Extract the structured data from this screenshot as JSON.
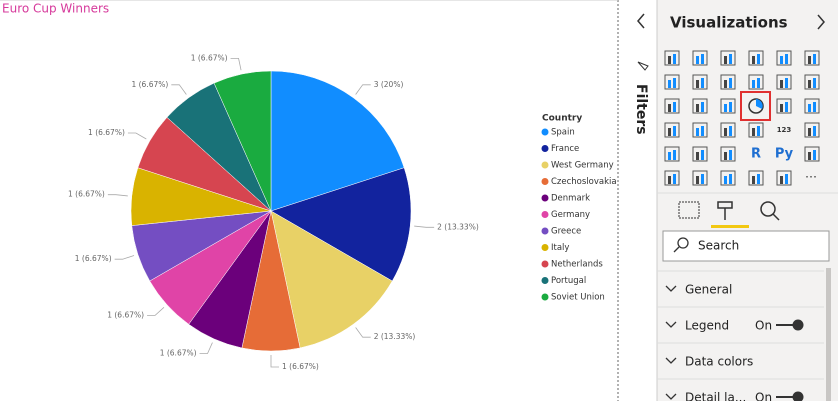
{
  "chart_data": {
    "type": "pie",
    "title": "Euro Cup Winners",
    "legend_title": "Country",
    "legend": "right",
    "categories": [
      "Spain",
      "France",
      "West Germany",
      "Czechoslovakia",
      "Denmark",
      "Germany",
      "Greece",
      "Italy",
      "Netherlands",
      "Portugal",
      "Soviet Union"
    ],
    "values": [
      3,
      2,
      2,
      1,
      1,
      1,
      1,
      1,
      1,
      1,
      1
    ],
    "value_labels": [
      "3 (20%)",
      "2 (13.33%)",
      "2 (13.33%)",
      "1 (6.67%)",
      "1 (6.67%)",
      "1 (6.67%)",
      "1 (6.67%)",
      "1 (6.67%)",
      "1 (6.67%)",
      "1 (6.67%)",
      "1 (6.67%)"
    ],
    "colors": [
      "#118DFF",
      "#12239E",
      "#E8D166",
      "#E66C37",
      "#6B007B",
      "#E044A7",
      "#744EC2",
      "#D9B300",
      "#D64550",
      "#197278",
      "#1AAB40"
    ]
  },
  "ui": {
    "filters": "Filters",
    "pane_title": "Visualizations",
    "icon_texts": [
      "123",
      "R",
      "Py"
    ],
    "search": "Search",
    "sections": [
      {
        "label": "General"
      },
      {
        "label": "Legend",
        "state": "On"
      },
      {
        "label": "Data colors"
      },
      {
        "label": "Detail la...",
        "state": "On"
      }
    ]
  }
}
